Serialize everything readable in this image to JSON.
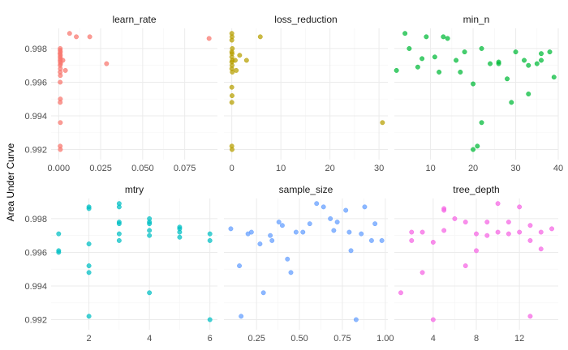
{
  "chart_data": {
    "type": "scatter",
    "ylabel": "Area Under Curve",
    "xlabel": "",
    "ylim": [
      0.9914,
      0.9992
    ],
    "yticks": [
      0.992,
      0.994,
      0.996,
      0.998
    ],
    "ytick_labels": [
      "0.992",
      "0.994",
      "0.996",
      "0.998"
    ],
    "grid": true,
    "legend": "none",
    "panels": [
      {
        "title": "learn_rate",
        "color": "#F8766D",
        "xlim": [
          -0.0045,
          0.0945
        ],
        "xticks": [
          0.0,
          0.025,
          0.05,
          0.075
        ],
        "xtick_labels": [
          "0.000",
          "0.025",
          "0.050",
          "0.075"
        ],
        "points": [
          [
            0.0009,
            0.998
          ],
          [
            0.0009,
            0.9979
          ],
          [
            0.001,
            0.9978
          ],
          [
            0.0008,
            0.9977
          ],
          [
            0.001,
            0.9976
          ],
          [
            0.0009,
            0.9975
          ],
          [
            0.001,
            0.9974
          ],
          [
            0.0009,
            0.9973
          ],
          [
            0.001,
            0.9972
          ],
          [
            0.0011,
            0.9971
          ],
          [
            0.0009,
            0.997
          ],
          [
            0.001,
            0.9968
          ],
          [
            0.0009,
            0.9966
          ],
          [
            0.001,
            0.9964
          ],
          [
            0.0009,
            0.996
          ],
          [
            0.001,
            0.995
          ],
          [
            0.0009,
            0.9948
          ],
          [
            0.001,
            0.9936
          ],
          [
            0.0009,
            0.9922
          ],
          [
            0.001,
            0.992
          ],
          [
            0.0025,
            0.9973
          ],
          [
            0.004,
            0.9967
          ],
          [
            0.0065,
            0.9989
          ],
          [
            0.0105,
            0.9987
          ],
          [
            0.0185,
            0.9987
          ],
          [
            0.0285,
            0.9971
          ],
          [
            0.0895,
            0.9986
          ]
        ]
      },
      {
        "title": "loss_reduction",
        "color": "#B79F00",
        "xlim": [
          -1.6,
          31.8
        ],
        "xticks": [
          0,
          10,
          20,
          30
        ],
        "xtick_labels": [
          "0",
          "10",
          "20",
          "30"
        ],
        "points": [
          [
            0.0,
            0.9989
          ],
          [
            0.05,
            0.9987
          ],
          [
            0.0,
            0.9985
          ],
          [
            0.1,
            0.998
          ],
          [
            0.0,
            0.9978
          ],
          [
            0.05,
            0.9977
          ],
          [
            0.0,
            0.9975
          ],
          [
            0.1,
            0.9973
          ],
          [
            0.0,
            0.9972
          ],
          [
            0.05,
            0.997
          ],
          [
            0.0,
            0.9968
          ],
          [
            0.1,
            0.9966
          ],
          [
            0.0,
            0.9957
          ],
          [
            0.05,
            0.9952
          ],
          [
            0.0,
            0.9948
          ],
          [
            0.0,
            0.9922
          ],
          [
            0.05,
            0.992
          ],
          [
            0.7,
            0.9973
          ],
          [
            0.9,
            0.9967
          ],
          [
            1.6,
            0.9976
          ],
          [
            3.0,
            0.9973
          ],
          [
            5.8,
            0.9987
          ],
          [
            30.7,
            0.9936
          ]
        ]
      },
      {
        "title": "min_n",
        "color": "#00BA38",
        "xlim": [
          1.5,
          40.0
        ],
        "xticks": [
          10,
          20,
          30,
          40
        ],
        "xtick_labels": [
          "10",
          "20",
          "30",
          "40"
        ],
        "points": [
          [
            2.0,
            0.9967
          ],
          [
            4.0,
            0.9989
          ],
          [
            5.0,
            0.998
          ],
          [
            7.0,
            0.9969
          ],
          [
            8.0,
            0.9974
          ],
          [
            9.0,
            0.9987
          ],
          [
            11.0,
            0.9975
          ],
          [
            12.0,
            0.9966
          ],
          [
            13.0,
            0.9987
          ],
          [
            14.0,
            0.9986
          ],
          [
            16.0,
            0.9973
          ],
          [
            17.0,
            0.9966
          ],
          [
            18.0,
            0.9978
          ],
          [
            20.0,
            0.9959
          ],
          [
            20.0,
            0.992
          ],
          [
            21.0,
            0.9922
          ],
          [
            22.0,
            0.998
          ],
          [
            22.0,
            0.9936
          ],
          [
            24.0,
            0.9971
          ],
          [
            26.0,
            0.9972
          ],
          [
            26.0,
            0.9971
          ],
          [
            28.0,
            0.9962
          ],
          [
            29.0,
            0.9948
          ],
          [
            30.0,
            0.9978
          ],
          [
            32.0,
            0.9973
          ],
          [
            33.0,
            0.997
          ],
          [
            33.0,
            0.9953
          ],
          [
            35.0,
            0.9971
          ],
          [
            36.0,
            0.9977
          ],
          [
            36.0,
            0.9973
          ],
          [
            38.0,
            0.9978
          ],
          [
            39.0,
            0.9963
          ]
        ]
      },
      {
        "title": "mtry",
        "color": "#00BFC4",
        "xlim": [
          0.75,
          6.25
        ],
        "xticks": [
          2,
          4,
          6
        ],
        "xtick_labels": [
          "2",
          "4",
          "6"
        ],
        "points": [
          [
            1,
            0.9971
          ],
          [
            1,
            0.9961
          ],
          [
            1,
            0.996
          ],
          [
            2,
            0.9987
          ],
          [
            2,
            0.9986
          ],
          [
            2,
            0.9965
          ],
          [
            2,
            0.9952
          ],
          [
            2,
            0.9948
          ],
          [
            2,
            0.9922
          ],
          [
            3,
            0.9989
          ],
          [
            3,
            0.9987
          ],
          [
            3,
            0.9978
          ],
          [
            3,
            0.9977
          ],
          [
            3,
            0.9971
          ],
          [
            3,
            0.9967
          ],
          [
            4,
            0.998
          ],
          [
            4,
            0.9978
          ],
          [
            4,
            0.9977
          ],
          [
            4,
            0.9973
          ],
          [
            4,
            0.997
          ],
          [
            4,
            0.9936
          ],
          [
            5,
            0.9975
          ],
          [
            5,
            0.9974
          ],
          [
            5,
            0.9972
          ],
          [
            5,
            0.9969
          ],
          [
            6,
            0.9971
          ],
          [
            6,
            0.9967
          ],
          [
            6,
            0.992
          ]
        ]
      },
      {
        "title": "sample_size",
        "color": "#619CFF",
        "xlim": [
          0.06,
          1.015
        ],
        "xticks": [
          0.25,
          0.5,
          0.75,
          1.0
        ],
        "xtick_labels": [
          "0.25",
          "0.50",
          "0.75",
          "1.00"
        ],
        "points": [
          [
            0.1,
            0.9974
          ],
          [
            0.15,
            0.9952
          ],
          [
            0.16,
            0.9922
          ],
          [
            0.2,
            0.9971
          ],
          [
            0.22,
            0.9972
          ],
          [
            0.27,
            0.9965
          ],
          [
            0.29,
            0.9936
          ],
          [
            0.33,
            0.997
          ],
          [
            0.34,
            0.9967
          ],
          [
            0.38,
            0.9978
          ],
          [
            0.4,
            0.9976
          ],
          [
            0.43,
            0.9956
          ],
          [
            0.45,
            0.9948
          ],
          [
            0.48,
            0.9972
          ],
          [
            0.52,
            0.9972
          ],
          [
            0.56,
            0.9977
          ],
          [
            0.6,
            0.9989
          ],
          [
            0.64,
            0.9987
          ],
          [
            0.68,
            0.998
          ],
          [
            0.7,
            0.9973
          ],
          [
            0.72,
            0.9978
          ],
          [
            0.77,
            0.9985
          ],
          [
            0.79,
            0.9972
          ],
          [
            0.8,
            0.9961
          ],
          [
            0.83,
            0.992
          ],
          [
            0.86,
            0.9971
          ],
          [
            0.88,
            0.9987
          ],
          [
            0.92,
            0.9967
          ],
          [
            0.94,
            0.9977
          ],
          [
            0.98,
            0.9967
          ]
        ]
      },
      {
        "title": "tree_depth",
        "color": "#F564E3",
        "xlim": [
          0.4,
          15.6
        ],
        "xticks": [
          4,
          8,
          12
        ],
        "xtick_labels": [
          "4",
          "8",
          "12"
        ],
        "points": [
          [
            1,
            0.9936
          ],
          [
            2,
            0.9972
          ],
          [
            2,
            0.9967
          ],
          [
            3,
            0.9972
          ],
          [
            3,
            0.9948
          ],
          [
            4,
            0.9966
          ],
          [
            4,
            0.992
          ],
          [
            5,
            0.9986
          ],
          [
            5,
            0.9985
          ],
          [
            5,
            0.9973
          ],
          [
            6,
            0.998
          ],
          [
            7,
            0.9978
          ],
          [
            7,
            0.9952
          ],
          [
            8,
            0.9971
          ],
          [
            8,
            0.9961
          ],
          [
            9,
            0.9978
          ],
          [
            9,
            0.997
          ],
          [
            10,
            0.9989
          ],
          [
            10,
            0.9972
          ],
          [
            11,
            0.9971
          ],
          [
            11,
            0.9978
          ],
          [
            12,
            0.9987
          ],
          [
            12,
            0.9972
          ],
          [
            13,
            0.9976
          ],
          [
            13,
            0.9967
          ],
          [
            13,
            0.9922
          ],
          [
            14,
            0.9972
          ],
          [
            14,
            0.9962
          ],
          [
            15,
            0.9974
          ]
        ]
      }
    ]
  }
}
